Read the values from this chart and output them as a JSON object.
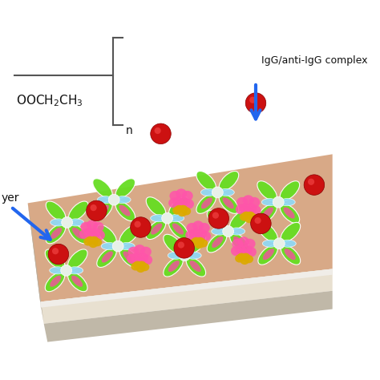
{
  "bg_color": "#ffffff",
  "label_igg": "IgG/anti-IgG complex",
  "label_layer": "yer",
  "plate_color_top": "#d4a07a",
  "plate_color_front": "#c0b8a8",
  "plate_color_bottom": "#a8a098",
  "plate_color_strip": "#e8e0d0",
  "red_ball_color": "#cc1111",
  "green_color": "#66dd22",
  "pink_color": "#ff44aa",
  "yellow_color": "#ddaa00",
  "cyan_color": "#88ddff",
  "white_color": "#ffffff",
  "arrow_color": "#2266ee",
  "text_color": "#111111",
  "bracket_color": "#555555"
}
